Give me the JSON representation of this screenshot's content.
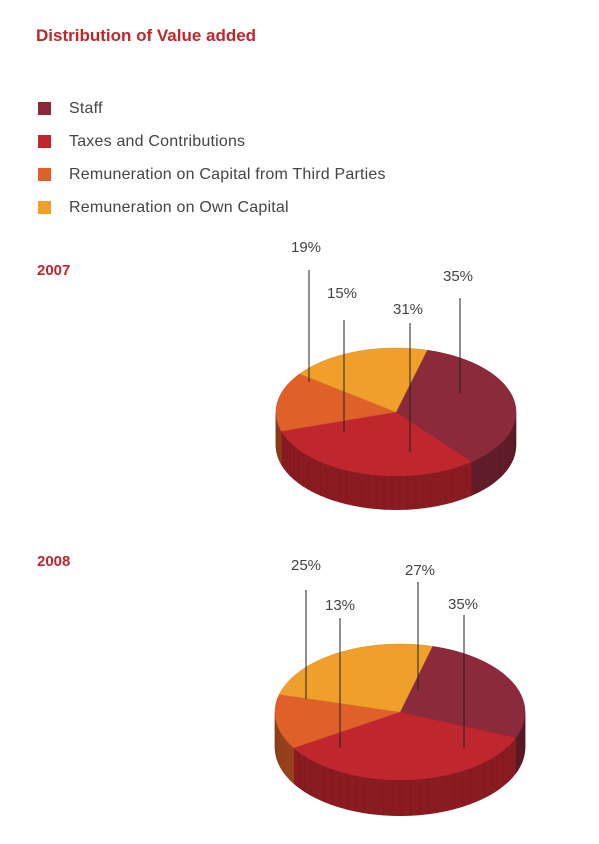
{
  "title": "Distribution of Value added",
  "legend": [
    {
      "label": "Staff",
      "color": "#8a2a3b"
    },
    {
      "label": "Taxes and Contributions",
      "color": "#c0262e"
    },
    {
      "label": "Remuneration on Capital from Third Parties",
      "color": "#e0602a"
    },
    {
      "label": "Remuneration on Own Capital",
      "color": "#f0a02a"
    }
  ],
  "chart_data": [
    {
      "type": "pie",
      "year": "2007",
      "categories": [
        "Staff",
        "Taxes and Contributions",
        "Remuneration on Capital from Third Parties",
        "Remuneration on Own Capital"
      ],
      "values": [
        35,
        31,
        15,
        19
      ],
      "labels": [
        "35%",
        "31%",
        "15%",
        "19%"
      ]
    },
    {
      "type": "pie",
      "year": "2008",
      "categories": [
        "Staff",
        "Taxes and Contributions",
        "Remuneration on Capital from Third Parties",
        "Remuneration on Own Capital"
      ],
      "values": [
        27,
        35,
        13,
        25
      ],
      "labels": [
        "27%",
        "35%",
        "13%",
        "25%"
      ]
    }
  ]
}
